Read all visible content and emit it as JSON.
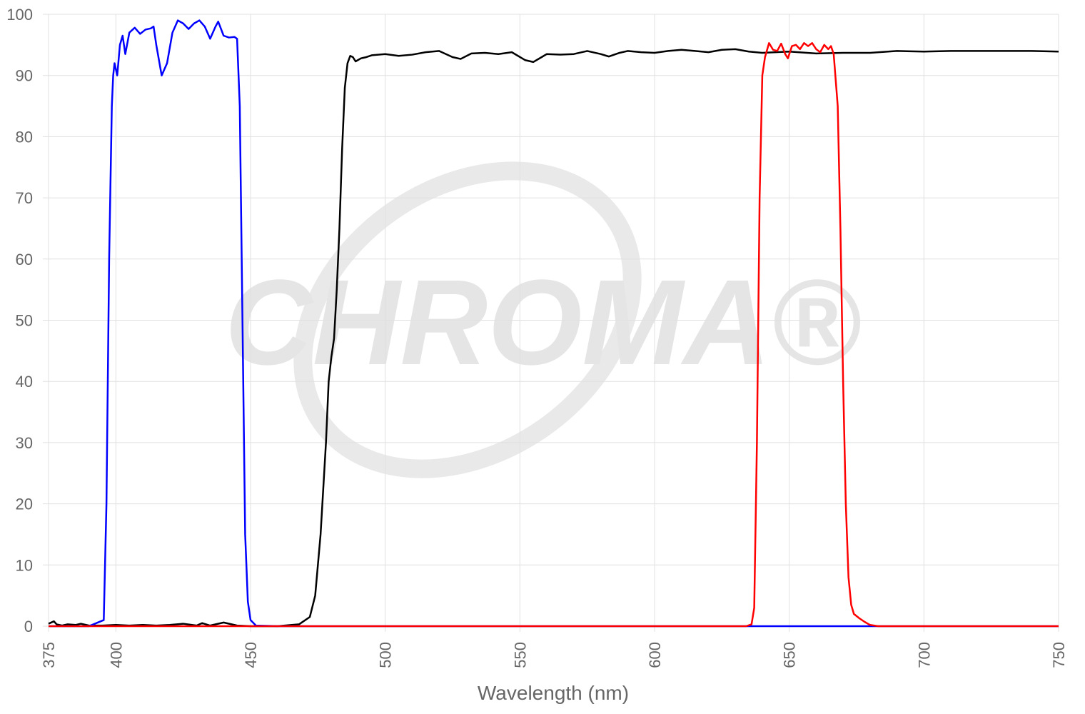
{
  "chart_data": {
    "type": "line",
    "x_label": "Wavelength (nm)",
    "watermark": "CHROMA®",
    "xlim": [
      375,
      750
    ],
    "xticks": [
      375,
      400,
      450,
      500,
      550,
      600,
      650,
      700,
      750
    ],
    "ylim": [
      0,
      100
    ],
    "yticks": [
      0,
      10,
      20,
      30,
      40,
      50,
      60,
      70,
      80,
      90,
      100
    ],
    "grid": true,
    "series": [
      {
        "color": "#000000",
        "x": [
          375,
          377,
          378,
          380,
          382,
          385,
          387,
          390,
          395,
          400,
          405,
          410,
          415,
          420,
          425,
          430,
          432,
          435,
          440,
          445,
          450,
          460,
          468,
          472,
          474,
          476,
          478,
          479,
          480,
          481,
          482,
          483,
          484,
          485,
          486,
          487,
          488,
          489,
          491,
          493,
          495,
          500,
          505,
          510,
          515,
          520,
          525,
          528,
          532,
          537,
          542,
          547,
          552,
          555,
          560,
          565,
          570,
          575,
          580,
          583,
          587,
          590,
          595,
          600,
          605,
          610,
          615,
          620,
          625,
          630,
          635,
          640,
          645,
          650,
          660,
          670,
          680,
          690,
          700,
          710,
          720,
          730,
          740,
          750
        ],
        "values": [
          0.4,
          0.8,
          0.3,
          0.1,
          0.3,
          0.2,
          0.4,
          0.1,
          0.1,
          0.2,
          0.1,
          0.2,
          0.1,
          0.2,
          0.4,
          0.1,
          0.5,
          0.1,
          0.6,
          0.1,
          0,
          0,
          0.3,
          1.5,
          5,
          15,
          30,
          40,
          44,
          47,
          55,
          65,
          78,
          88,
          92,
          93.2,
          93,
          92.3,
          92.8,
          93,
          93.3,
          93.5,
          93.2,
          93.4,
          93.8,
          94,
          93,
          92.7,
          93.6,
          93.7,
          93.5,
          93.8,
          92.5,
          92.2,
          93.5,
          93.4,
          93.5,
          94,
          93.5,
          93.1,
          93.7,
          94,
          93.8,
          93.7,
          94,
          94.2,
          94,
          93.8,
          94.2,
          94.3,
          93.9,
          93.7,
          93.8,
          93.9,
          93.6,
          93.7,
          93.7,
          94,
          93.9,
          94,
          94,
          94,
          94,
          93.9
        ]
      },
      {
        "color": "#0000ff",
        "x": [
          375,
          390,
          395.5,
          396.5,
          397.5,
          398.5,
          399,
          399.5,
          400.5,
          401.5,
          402.5,
          403.5,
          405,
          407,
          409,
          411,
          413,
          414,
          415,
          417,
          419,
          421,
          423,
          425,
          427,
          429,
          431,
          433,
          435,
          437,
          438,
          440,
          442,
          444,
          445,
          446,
          447,
          448,
          449,
          450,
          452,
          460,
          500,
          600,
          750
        ],
        "values": [
          0,
          0,
          1,
          20,
          60,
          85,
          90,
          92,
          90,
          95,
          96.5,
          93.5,
          97,
          97.8,
          96.8,
          97.5,
          97.7,
          98,
          95,
          90,
          92,
          97,
          99,
          98.5,
          97.6,
          98.5,
          99,
          98,
          96,
          98,
          98.8,
          96.5,
          96.2,
          96.3,
          96,
          85,
          50,
          15,
          4,
          1,
          0.1,
          0,
          0,
          0,
          0
        ]
      },
      {
        "color": "#ff0000",
        "x": [
          375,
          634,
          636,
          637,
          638,
          639,
          640,
          641,
          642.5,
          644,
          645.5,
          647,
          648.5,
          649.5,
          651,
          652.5,
          654,
          655.5,
          657,
          658.5,
          660,
          661.5,
          663,
          664.5,
          665.5,
          666.5,
          668,
          669,
          670,
          671,
          672,
          673,
          674,
          676,
          678,
          680,
          683,
          750
        ],
        "values": [
          0,
          0,
          0.3,
          3,
          30,
          70,
          90,
          93,
          95.3,
          94.2,
          94,
          95.2,
          93.5,
          92.8,
          94.8,
          95,
          94.3,
          95.3,
          94.8,
          95.3,
          94.3,
          93.8,
          95,
          94.3,
          94.8,
          93.5,
          85,
          65,
          40,
          20,
          8,
          3.5,
          2,
          1.3,
          0.7,
          0.2,
          0,
          0
        ]
      }
    ]
  }
}
